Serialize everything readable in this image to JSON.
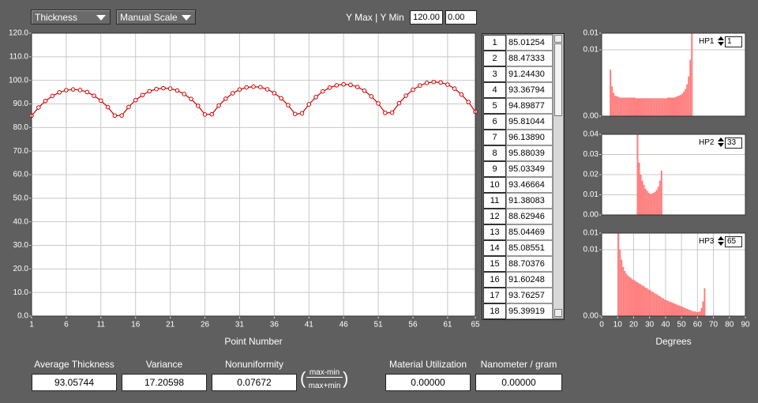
{
  "controls": {
    "quantity_select": "Thickness",
    "scale_select": "Manual Scale",
    "y_range_label": "Y Max | Y Min",
    "y_max": "120.00",
    "y_min": "0.00",
    "hp_spinners": [
      {
        "label": "HP1",
        "value": 1
      },
      {
        "label": "HP2",
        "value": 33
      },
      {
        "label": "HP3",
        "value": 65
      }
    ]
  },
  "chart_data": [
    {
      "type": "line",
      "xlabel": "Point Number",
      "color": "#cc0000",
      "grid": true,
      "x": [
        1,
        2,
        3,
        4,
        5,
        6,
        7,
        8,
        9,
        10,
        11,
        12,
        13,
        14,
        15,
        16,
        17,
        18,
        19,
        20,
        21,
        22,
        23,
        24,
        25,
        26,
        27,
        28,
        29,
        30,
        31,
        32,
        33,
        34,
        35,
        36,
        37,
        38,
        39,
        40,
        41,
        42,
        43,
        44,
        45,
        46,
        47,
        48,
        49,
        50,
        51,
        52,
        53,
        54,
        55,
        56,
        57,
        58,
        59,
        60,
        61,
        62,
        63,
        64,
        65
      ],
      "values": [
        85.01254,
        88.47333,
        91.2443,
        93.36794,
        94.89877,
        95.81044,
        96.1389,
        95.88039,
        95.03349,
        93.46664,
        91.38083,
        88.62946,
        85.04469,
        85.08551,
        88.70376,
        91.60248,
        93.76257,
        95.39919,
        96.3,
        96.7,
        96.5,
        95.7,
        94.2,
        92.1,
        89.2,
        85.5,
        85.6,
        89.3,
        92.2,
        94.5,
        96.1,
        97.0,
        97.3,
        97.1,
        96.2,
        94.6,
        92.4,
        89.5,
        85.7,
        86.0,
        89.8,
        92.9,
        95.3,
        96.9,
        97.9,
        98.3,
        98.1,
        97.2,
        95.6,
        93.2,
        90.2,
        86.2,
        86.3,
        90.3,
        93.5,
        96.0,
        97.8,
        98.9,
        99.3,
        99.1,
        98.2,
        96.5,
        94.0,
        90.8,
        86.7
      ],
      "xlim": [
        1,
        65
      ],
      "xticks": [
        1,
        6,
        11,
        16,
        21,
        26,
        31,
        36,
        41,
        46,
        51,
        56,
        61,
        65
      ],
      "ylim": [
        0,
        120
      ],
      "yticks": [
        {
          "value": 0,
          "label": "0.0"
        },
        {
          "value": 10,
          "label": "10.0"
        },
        {
          "value": 20,
          "label": "20.0"
        },
        {
          "value": 30,
          "label": "30.0"
        },
        {
          "value": 40,
          "label": "40.0"
        },
        {
          "value": 50,
          "label": "50.0"
        },
        {
          "value": 60,
          "label": "60.0"
        },
        {
          "value": 70,
          "label": "70.0"
        },
        {
          "value": 80,
          "label": "80.0"
        },
        {
          "value": 90,
          "label": "90.0"
        },
        {
          "value": 100,
          "label": "100.0"
        },
        {
          "value": 110,
          "label": "110.0"
        },
        {
          "value": 120,
          "label": "120.0"
        }
      ]
    },
    {
      "type": "histogram",
      "color": "#ff7f7f",
      "grid": true,
      "bins": [
        5,
        6,
        7,
        8,
        9,
        10,
        11,
        12,
        13,
        14,
        15,
        16,
        17,
        18,
        19,
        20,
        21,
        22,
        23,
        24,
        25,
        26,
        27,
        28,
        29,
        30,
        31,
        32,
        33,
        34,
        35,
        36,
        37,
        38,
        39,
        40,
        41,
        42,
        43,
        44,
        45,
        46,
        47,
        48,
        49,
        50,
        51,
        52,
        53,
        54,
        55,
        56,
        57
      ],
      "values": [
        0.007,
        0.0045,
        0.0035,
        0.0031,
        0.003,
        0.0029,
        0.0028,
        0.0028,
        0.0028,
        0.0028,
        0.0028,
        0.0028,
        0.0028,
        0.0028,
        0.0028,
        0.0028,
        0.0027,
        0.0027,
        0.0027,
        0.0027,
        0.0027,
        0.0027,
        0.0027,
        0.0027,
        0.0027,
        0.0027,
        0.0027,
        0.0027,
        0.0027,
        0.0027,
        0.0027,
        0.0027,
        0.0027,
        0.0027,
        0.0027,
        0.0027,
        0.0028,
        0.0028,
        0.0028,
        0.0028,
        0.0028,
        0.0029,
        0.003,
        0.0031,
        0.0032,
        0.0034,
        0.0037,
        0.0041,
        0.0048,
        0.006,
        0.0085,
        0.0125
      ],
      "xlim": [
        0,
        90
      ],
      "ylim": [
        0,
        0.0125
      ],
      "yticks": [
        {
          "value": 0,
          "label": "0.00"
        },
        {
          "value": 0.01,
          "label": "0.01"
        },
        {
          "value": 0.0125,
          "label": "0.01"
        }
      ]
    },
    {
      "type": "histogram",
      "color": "#ff7f7f",
      "grid": true,
      "bins": [
        22,
        23,
        24,
        25,
        26,
        27,
        28,
        29,
        30,
        31,
        32,
        33,
        34,
        35,
        36,
        37,
        38
      ],
      "values": [
        0.04,
        0.026,
        0.02,
        0.017,
        0.015,
        0.013,
        0.012,
        0.011,
        0.0105,
        0.0105,
        0.011,
        0.0115,
        0.0125,
        0.014,
        0.017,
        0.022
      ],
      "xlim": [
        0,
        90
      ],
      "ylim": [
        0,
        0.04
      ],
      "yticks": [
        {
          "value": 0,
          "label": "0.00"
        },
        0.01,
        0.02,
        0.03,
        0.04
      ]
    },
    {
      "type": "histogram",
      "color": "#ff7f7f",
      "grid": true,
      "xlabel": "Degrees",
      "bins": [
        10,
        11,
        12,
        13,
        14,
        15,
        16,
        17,
        18,
        19,
        20,
        21,
        22,
        23,
        24,
        25,
        26,
        27,
        28,
        29,
        30,
        31,
        32,
        33,
        34,
        35,
        36,
        37,
        38,
        39,
        40,
        41,
        42,
        43,
        44,
        45,
        46,
        47,
        48,
        49,
        50,
        51,
        52,
        53,
        54,
        55,
        56,
        57,
        58,
        59,
        60,
        61,
        62,
        63,
        64,
        65
      ],
      "values": [
        0.0125,
        0.01,
        0.0085,
        0.0074,
        0.0068,
        0.0064,
        0.0061,
        0.0059,
        0.0057,
        0.0055,
        0.0054,
        0.0052,
        0.0051,
        0.0049,
        0.0048,
        0.0046,
        0.0045,
        0.0043,
        0.0042,
        0.004,
        0.0039,
        0.0037,
        0.0036,
        0.0034,
        0.0033,
        0.0031,
        0.003,
        0.0028,
        0.0027,
        0.0025,
        0.0024,
        0.0023,
        0.0022,
        0.0021,
        0.002,
        0.0019,
        0.0018,
        0.0017,
        0.0016,
        0.0015,
        0.0014,
        0.0013,
        0.0012,
        0.0011,
        0.001,
        0.0009,
        0.0008,
        0.0007,
        0.0007,
        0.0006,
        0.0006,
        0.0007,
        0.0012,
        0.0022,
        0.0042
      ],
      "xlim": [
        0,
        90
      ],
      "xticks": [
        0,
        10,
        20,
        30,
        40,
        50,
        60,
        70,
        80,
        90
      ],
      "ylim": [
        0,
        0.0125
      ],
      "yticks": [
        {
          "value": 0,
          "label": "0.00"
        },
        {
          "value": 0.01,
          "label": "0.01"
        },
        {
          "value": 0.0125,
          "label": "0.01"
        }
      ]
    }
  ],
  "table": {
    "rows": [
      [
        "1",
        "85.01254"
      ],
      [
        "2",
        "88.47333"
      ],
      [
        "3",
        "91.24430"
      ],
      [
        "4",
        "93.36794"
      ],
      [
        "5",
        "94.89877"
      ],
      [
        "6",
        "95.81044"
      ],
      [
        "7",
        "96.13890"
      ],
      [
        "8",
        "95.88039"
      ],
      [
        "9",
        "95.03349"
      ],
      [
        "10",
        "93.46664"
      ],
      [
        "11",
        "91.38083"
      ],
      [
        "12",
        "88.62946"
      ],
      [
        "13",
        "85.04469"
      ],
      [
        "14",
        "85.08551"
      ],
      [
        "15",
        "88.70376"
      ],
      [
        "16",
        "91.60248"
      ],
      [
        "17",
        "93.76257"
      ],
      [
        "18",
        "95.39919"
      ]
    ]
  },
  "stats": {
    "average_thickness": {
      "label": "Average Thickness",
      "value": "93.05744"
    },
    "variance": {
      "label": "Variance",
      "value": "17.20598"
    },
    "nonuniformity": {
      "label": "Nonuniformity",
      "value": "0.07672"
    },
    "formula": {
      "numerator": "max-min",
      "denominator": "max+min"
    },
    "material_utilization": {
      "label": "Material Utilization",
      "value": "0.00000"
    },
    "nanometer_per_gram": {
      "label": "Nanometer / gram",
      "value": "0.00000"
    }
  }
}
